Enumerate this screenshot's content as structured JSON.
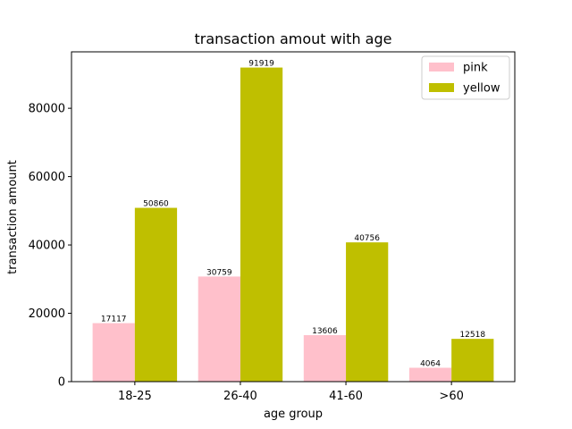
{
  "chart_data": {
    "type": "bar",
    "title": "transaction amout with age",
    "xlabel": "age group",
    "ylabel": "transaction amount",
    "categories": [
      "18-25",
      "26-40",
      "41-60",
      ">60"
    ],
    "series": [
      {
        "name": "pink",
        "color": "#ffc0cb",
        "values": [
          17117,
          30759,
          13606,
          4064
        ]
      },
      {
        "name": "yellow",
        "color": "#bfbf00",
        "values": [
          50860,
          91919,
          40756,
          12518
        ]
      }
    ],
    "ylim": [
      0,
      96515
    ],
    "yticks": [
      0,
      20000,
      40000,
      60000,
      80000
    ],
    "ytick_labels": [
      "0",
      "20000",
      "40000",
      "60000",
      "80000"
    ],
    "legend_position": "top-right",
    "grid": false
  }
}
